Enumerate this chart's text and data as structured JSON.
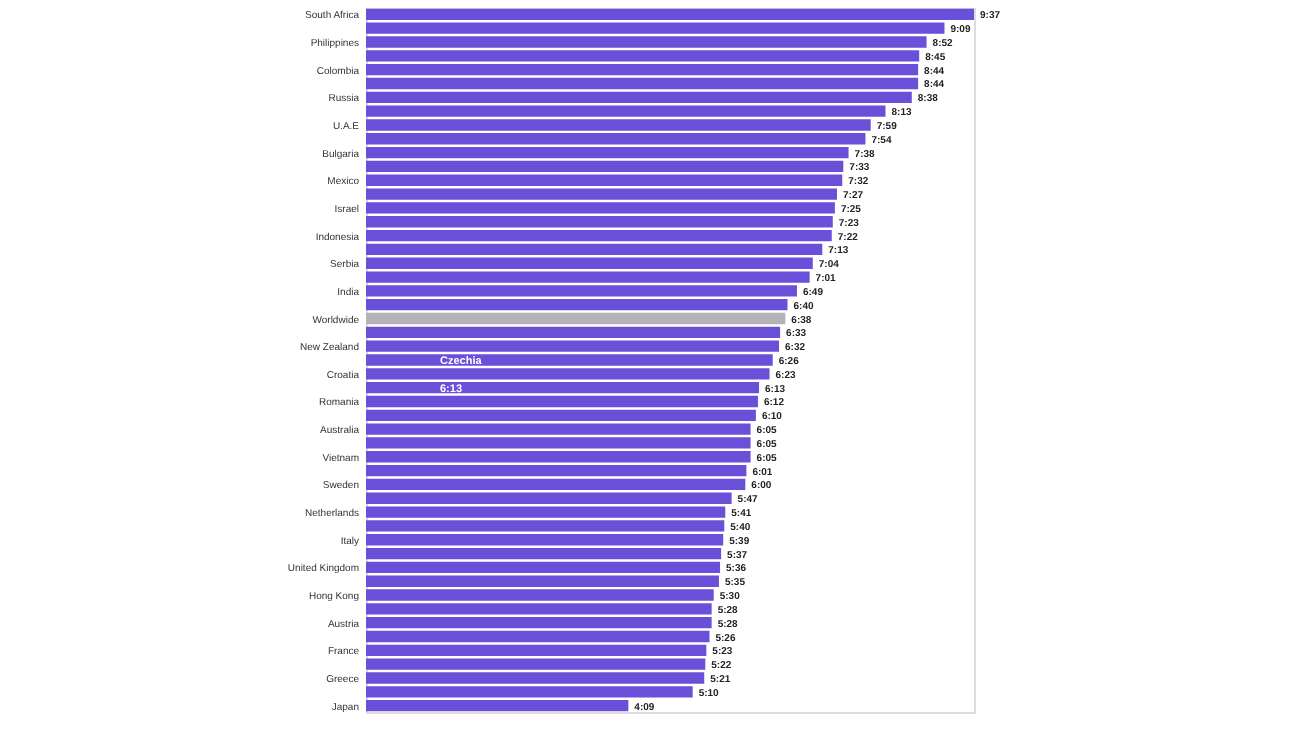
{
  "chart_data": {
    "type": "bar",
    "orientation": "horizontal",
    "categories": [
      "South Africa",
      null,
      "Philippines",
      null,
      "Colombia",
      null,
      "Russia",
      null,
      "U.A.E",
      null,
      "Bulgaria",
      null,
      "Mexico",
      null,
      "Israel",
      null,
      "Indonesia",
      null,
      "Serbia",
      null,
      "India",
      null,
      "Worldwide",
      null,
      "New Zealand",
      null,
      "Croatia",
      null,
      "Romania",
      null,
      "Australia",
      null,
      "Vietnam",
      null,
      "Sweden",
      null,
      "Netherlands",
      null,
      "Italy",
      null,
      "United Kingdom",
      null,
      "Hong Kong",
      null,
      "Austria",
      null,
      "France",
      null,
      "Greece",
      null,
      "Japan"
    ],
    "values": [
      9.617,
      9.15,
      8.867,
      8.75,
      8.733,
      8.733,
      8.633,
      8.217,
      7.983,
      7.9,
      7.633,
      7.55,
      7.533,
      7.45,
      7.417,
      7.383,
      7.367,
      7.217,
      7.067,
      7.017,
      6.817,
      6.667,
      6.633,
      6.55,
      6.533,
      6.433,
      6.383,
      6.217,
      6.2,
      6.167,
      6.083,
      6.083,
      6.083,
      6.017,
      6.0,
      5.783,
      5.683,
      5.667,
      5.65,
      5.617,
      5.6,
      5.583,
      5.5,
      5.467,
      5.467,
      5.433,
      5.383,
      5.367,
      5.35,
      5.167,
      4.15
    ],
    "value_labels": [
      "9:37",
      "9:09",
      "8:52",
      "8:45",
      "8:44",
      "8:44",
      "8:38",
      "8:13",
      "7:59",
      "7:54",
      "7:38",
      "7:33",
      "7:32",
      "7:27",
      "7:25",
      "7:23",
      "7:22",
      "7:13",
      "7:04",
      "7:01",
      "6:49",
      "6:40",
      "6:38",
      "6:33",
      "6:32",
      "6:26",
      "6:23",
      "6:13",
      "6:12",
      "6:10",
      "6:05",
      "6:05",
      "6:05",
      "6:01",
      "6:00",
      "5:47",
      "5:41",
      "5:40",
      "5:39",
      "5:37",
      "5:36",
      "5:35",
      "5:30",
      "5:28",
      "5:28",
      "5:26",
      "5:23",
      "5:22",
      "5:21",
      "5:10",
      "4:09"
    ],
    "colors": [
      "#6a4fd9",
      "#6a4fd9",
      "#6a4fd9",
      "#6a4fd9",
      "#6a4fd9",
      "#6a4fd9",
      "#6a4fd9",
      "#6a4fd9",
      "#6a4fd9",
      "#6a4fd9",
      "#6a4fd9",
      "#6a4fd9",
      "#6a4fd9",
      "#6a4fd9",
      "#6a4fd9",
      "#6a4fd9",
      "#6a4fd9",
      "#6a4fd9",
      "#6a4fd9",
      "#6a4fd9",
      "#6a4fd9",
      "#6a4fd9",
      "#b4b4b8",
      "#6a4fd9",
      "#6a4fd9",
      "#6a4fd9",
      "#6a4fd9",
      "#6a4fd9",
      "#6a4fd9",
      "#6a4fd9",
      "#6a4fd9",
      "#6a4fd9",
      "#6a4fd9",
      "#6a4fd9",
      "#6a4fd9",
      "#6a4fd9",
      "#6a4fd9",
      "#6a4fd9",
      "#6a4fd9",
      "#6a4fd9",
      "#6a4fd9",
      "#6a4fd9",
      "#6a4fd9",
      "#6a4fd9",
      "#6a4fd9",
      "#6a4fd9",
      "#6a4fd9",
      "#6a4fd9",
      "#6a4fd9",
      "#6a4fd9",
      "#6a4fd9"
    ],
    "annotations": [
      "Czechia",
      "6:13"
    ]
  }
}
